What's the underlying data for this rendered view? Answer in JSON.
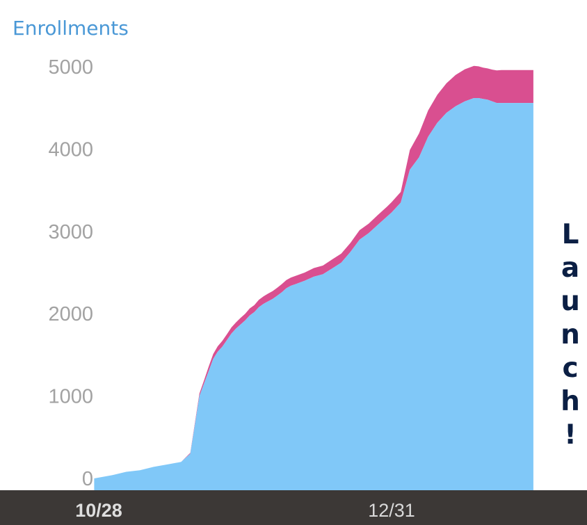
{
  "chart_data": {
    "type": "area",
    "stacked": true,
    "ylabel": "Enrollments",
    "ylim": [
      0,
      5000
    ],
    "yticks": [
      "0",
      "1000",
      "2000",
      "3000",
      "4000",
      "5000"
    ],
    "xticks": [
      {
        "label": "10/28",
        "day": 0,
        "bold": true
      },
      {
        "label": "12/31",
        "day": 64,
        "bold": false
      }
    ],
    "grid": false,
    "legend": "none",
    "annotation": "Launch!",
    "colors": {
      "bottom_series": "#80c8f8",
      "top_series": "#d94f90",
      "axis_bar": "#3c3836",
      "ylabel_text": "#4a98d6",
      "annotation_text": "#0b1f44"
    },
    "days": [
      -1,
      3,
      6,
      9,
      12,
      15,
      18,
      20,
      22,
      23,
      24,
      25,
      26,
      27,
      28,
      29,
      30,
      31,
      32,
      33,
      34,
      35,
      36,
      37,
      38,
      39,
      40,
      41,
      42,
      43,
      45,
      47,
      49,
      51,
      53,
      55,
      57,
      59,
      61,
      63,
      64,
      66,
      68,
      70,
      72,
      74,
      76,
      78,
      80,
      82,
      83,
      84,
      85,
      86,
      87,
      88,
      89,
      90,
      91,
      92,
      93,
      94,
      95
    ],
    "series": [
      {
        "values": [
          0,
          40,
          80,
          100,
          140,
          170,
          200,
          300,
          1000,
          1150,
          1300,
          1450,
          1540,
          1600,
          1680,
          1760,
          1820,
          1870,
          1920,
          1980,
          2020,
          2080,
          2120,
          2150,
          2180,
          2220,
          2260,
          2310,
          2340,
          2360,
          2400,
          2450,
          2480,
          2550,
          2620,
          2750,
          2900,
          2980,
          3080,
          3180,
          3230,
          3350,
          3750,
          3900,
          4150,
          4320,
          4440,
          4520,
          4580,
          4620,
          4620,
          4610,
          4600,
          4580,
          4560,
          4560,
          4560,
          4560,
          4560,
          4560,
          4560,
          4560,
          4560
        ]
      },
      {
        "values": [
          0,
          0,
          0,
          0,
          0,
          0,
          0,
          10,
          30,
          40,
          55,
          60,
          65,
          70,
          70,
          75,
          75,
          80,
          80,
          85,
          85,
          90,
          90,
          95,
          95,
          95,
          100,
          100,
          100,
          100,
          100,
          105,
          105,
          110,
          110,
          110,
          115,
          115,
          120,
          120,
          125,
          130,
          240,
          290,
          320,
          340,
          360,
          380,
          390,
          390,
          385,
          380,
          380,
          385,
          395,
          400,
          400,
          400,
          400,
          400,
          400,
          400,
          400
        ]
      }
    ]
  }
}
